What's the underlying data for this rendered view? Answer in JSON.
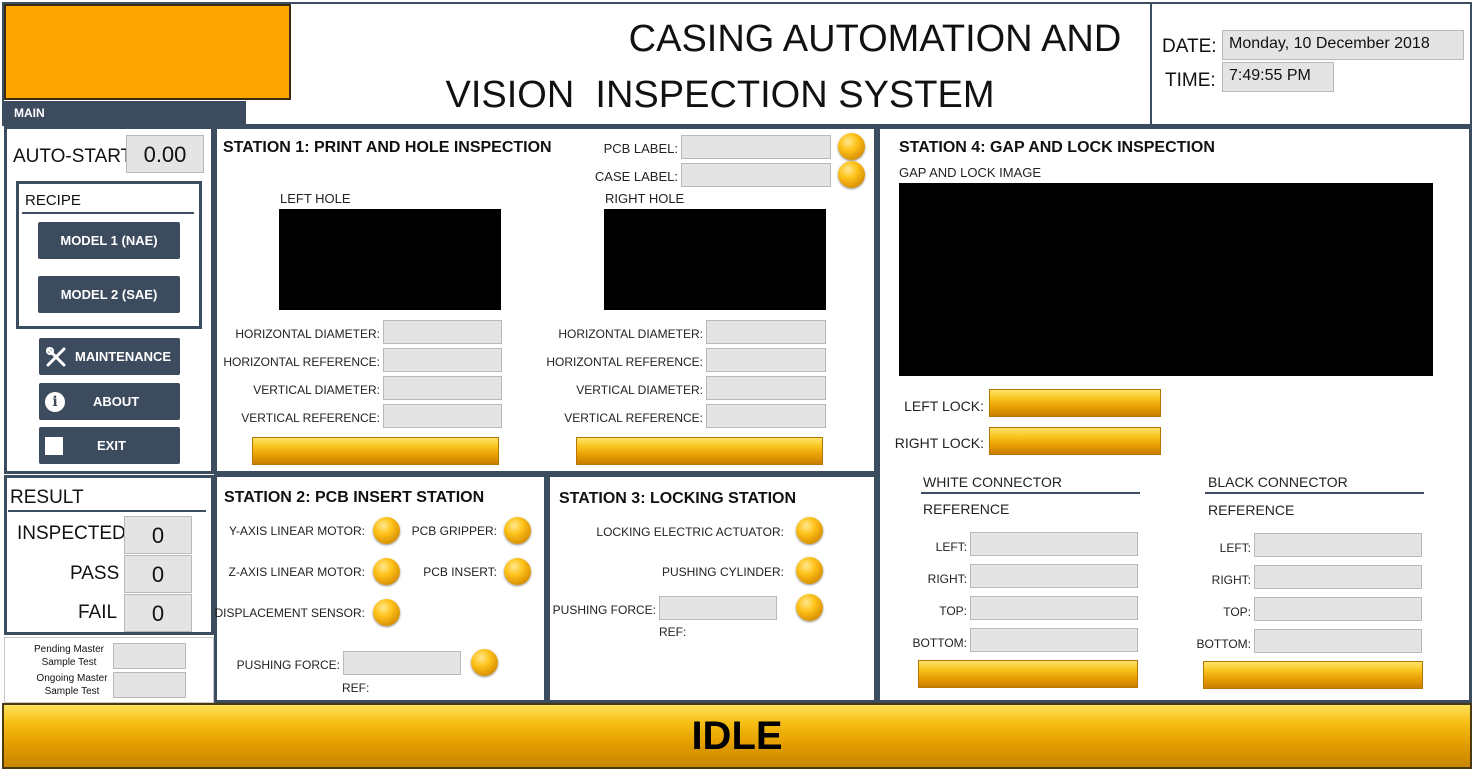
{
  "header": {
    "title_line1": "CASING AUTOMATION AND",
    "title_line2": "VISION  INSPECTION SYSTEM",
    "date_label": "DATE:",
    "date_value": "Monday, 10 December 2018",
    "time_label": "TIME:",
    "time_value": "7:49:55 PM",
    "tab_main": "MAIN",
    "logo_color": "#ffa500"
  },
  "sidebar": {
    "autostart_label": "AUTO-START",
    "autostart_value": "0.00",
    "recipe_label": "RECIPE",
    "model1_label": "MODEL 1 (NAE)",
    "model2_label": "MODEL 2 (SAE)",
    "maintenance_label": "MAINTENANCE",
    "about_label": "ABOUT",
    "exit_label": "EXIT"
  },
  "result": {
    "title": "RESULT",
    "inspected_label": "INSPECTED",
    "inspected_value": "0",
    "pass_label": "PASS",
    "pass_value": "0",
    "fail_label": "FAIL",
    "fail_value": "0",
    "pending_label_1": "Pending Master",
    "pending_label_2": "Sample Test",
    "ongoing_label_1": "Ongoing Master",
    "ongoing_label_2": "Sample Test"
  },
  "station1": {
    "title": "STATION 1: PRINT AND HOLE INSPECTION",
    "pcb_label": "PCB LABEL:",
    "case_label": "CASE LABEL:",
    "left_hole": "LEFT HOLE",
    "right_hole": "RIGHT HOLE",
    "h_diameter": "HORIZONTAL DIAMETER:",
    "h_reference": "HORIZONTAL REFERENCE:",
    "v_diameter": "VERTICAL DIAMETER:",
    "v_reference": "VERTICAL REFERENCE:"
  },
  "station2": {
    "title": "STATION 2: PCB INSERT STATION",
    "y_motor": "Y-AXIS LINEAR MOTOR:",
    "z_motor": "Z-AXIS LINEAR MOTOR:",
    "disp_sensor": "DISPLACEMENT SENSOR:",
    "pcb_gripper": "PCB GRIPPER:",
    "pcb_insert": "PCB INSERT:",
    "pushing_force": "PUSHING FORCE:",
    "ref": "REF:"
  },
  "station3": {
    "title": "STATION 3: LOCKING STATION",
    "actuator": "LOCKING ELECTRIC ACTUATOR:",
    "cylinder": "PUSHING CYLINDER:",
    "pushing_force": "PUSHING FORCE:",
    "ref": "REF:"
  },
  "station4": {
    "title": "STATION 4: GAP AND LOCK INSPECTION",
    "image_label": "GAP AND LOCK IMAGE",
    "left_lock": "LEFT LOCK:",
    "right_lock": "RIGHT LOCK:",
    "white_connector": "WHITE CONNECTOR",
    "black_connector": "BLACK CONNECTOR",
    "reference": "REFERENCE",
    "left": "LEFT:",
    "right": "RIGHT:",
    "top": "TOP:",
    "bottom": "BOTTOM:"
  },
  "status": {
    "text": "IDLE"
  }
}
